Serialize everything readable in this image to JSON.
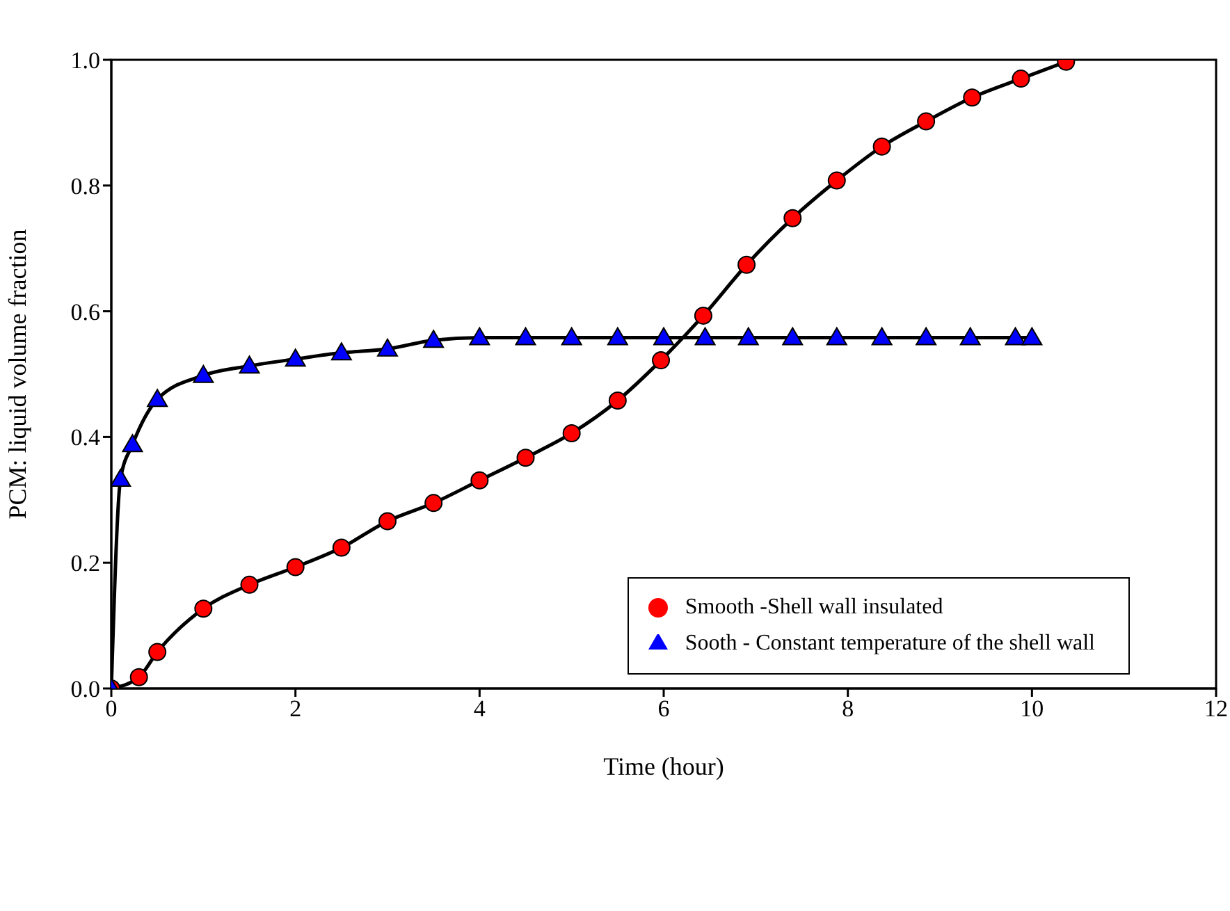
{
  "chart_data": {
    "type": "line",
    "xlabel": "Time (hour)",
    "ylabel": "PCM: liquid volume fraction",
    "xlim": [
      0,
      12
    ],
    "xticks": [
      0,
      2,
      4,
      6,
      8,
      10,
      12
    ],
    "ylim": [
      0,
      1
    ],
    "yticks": [
      {
        "value": 0,
        "label": "0.0"
      },
      {
        "value": 0.2,
        "label": "0.2"
      },
      {
        "value": 0.4,
        "label": "0.4"
      },
      {
        "value": 0.6,
        "label": "0.6"
      },
      {
        "value": 0.8,
        "label": "0.8"
      },
      {
        "value": 1,
        "label": "1.0"
      }
    ],
    "grid": false,
    "legend": "bottom right",
    "line_style": "solid",
    "series": [
      {
        "name": "Smooth -Shell wall insulated",
        "color": "#ff0000",
        "marker": "circle",
        "x": [
          0,
          0.3,
          0.5,
          1,
          1.5,
          2,
          2.5,
          3,
          3.5,
          4,
          4.5,
          5,
          5.5,
          5.97,
          6.43,
          6.9,
          7.4,
          7.88,
          8.37,
          8.85,
          9.35,
          9.88,
          10.37
        ],
        "values": [
          0,
          0.018,
          0.058,
          0.127,
          0.165,
          0.193,
          0.224,
          0.266,
          0.295,
          0.331,
          0.367,
          0.406,
          0.458,
          0.522,
          0.593,
          0.674,
          0.748,
          0.808,
          0.862,
          0.902,
          0.94,
          0.97,
          0.997
        ]
      },
      {
        "name": "Sooth - Constant temperature of the shell wall",
        "color": "#0000ff",
        "marker": "triangle",
        "x": [
          0,
          0.1,
          0.23,
          0.5,
          1,
          1.5,
          2,
          2.5,
          3,
          3.5,
          4,
          4.5,
          5,
          5.5,
          6,
          6.45,
          6.92,
          7.4,
          7.88,
          8.37,
          8.85,
          9.33,
          9.82,
          10.0
        ],
        "values": [
          0,
          0.333,
          0.388,
          0.46,
          0.498,
          0.513,
          0.524,
          0.534,
          0.54,
          0.554,
          0.558,
          0.558,
          0.558,
          0.558,
          0.558,
          0.558,
          0.558,
          0.558,
          0.558,
          0.558,
          0.558,
          0.558,
          0.558,
          0.558
        ]
      }
    ]
  }
}
